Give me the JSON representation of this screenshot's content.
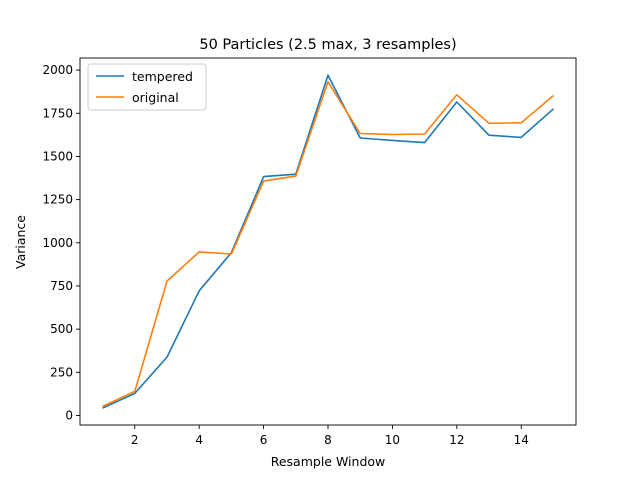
{
  "chart_data": {
    "type": "line",
    "title": "50 Particles (2.5 max, 3 resamples)",
    "xlabel": "Resample Window",
    "ylabel": "Variance",
    "xlim": [
      0.3,
      15.7
    ],
    "ylim": [
      -55,
      2070
    ],
    "xticks": [
      2,
      4,
      6,
      8,
      10,
      12,
      14
    ],
    "yticks": [
      0,
      250,
      500,
      750,
      1000,
      1250,
      1500,
      1750,
      2000
    ],
    "grid": false,
    "legend_position": "top-left",
    "x": [
      1,
      2,
      3,
      4,
      5,
      6,
      7,
      8,
      9,
      10,
      11,
      12,
      13,
      14,
      15
    ],
    "series": [
      {
        "name": "tempered",
        "color": "#1f77b4",
        "values": [
          42,
          128,
          338,
          722,
          943,
          1383,
          1397,
          1970,
          1607,
          1593,
          1580,
          1815,
          1623,
          1610,
          1776
        ]
      },
      {
        "name": "original",
        "color": "#ff7f0e",
        "values": [
          52,
          140,
          778,
          947,
          935,
          1357,
          1386,
          1932,
          1633,
          1627,
          1630,
          1857,
          1692,
          1695,
          1853
        ]
      }
    ]
  }
}
